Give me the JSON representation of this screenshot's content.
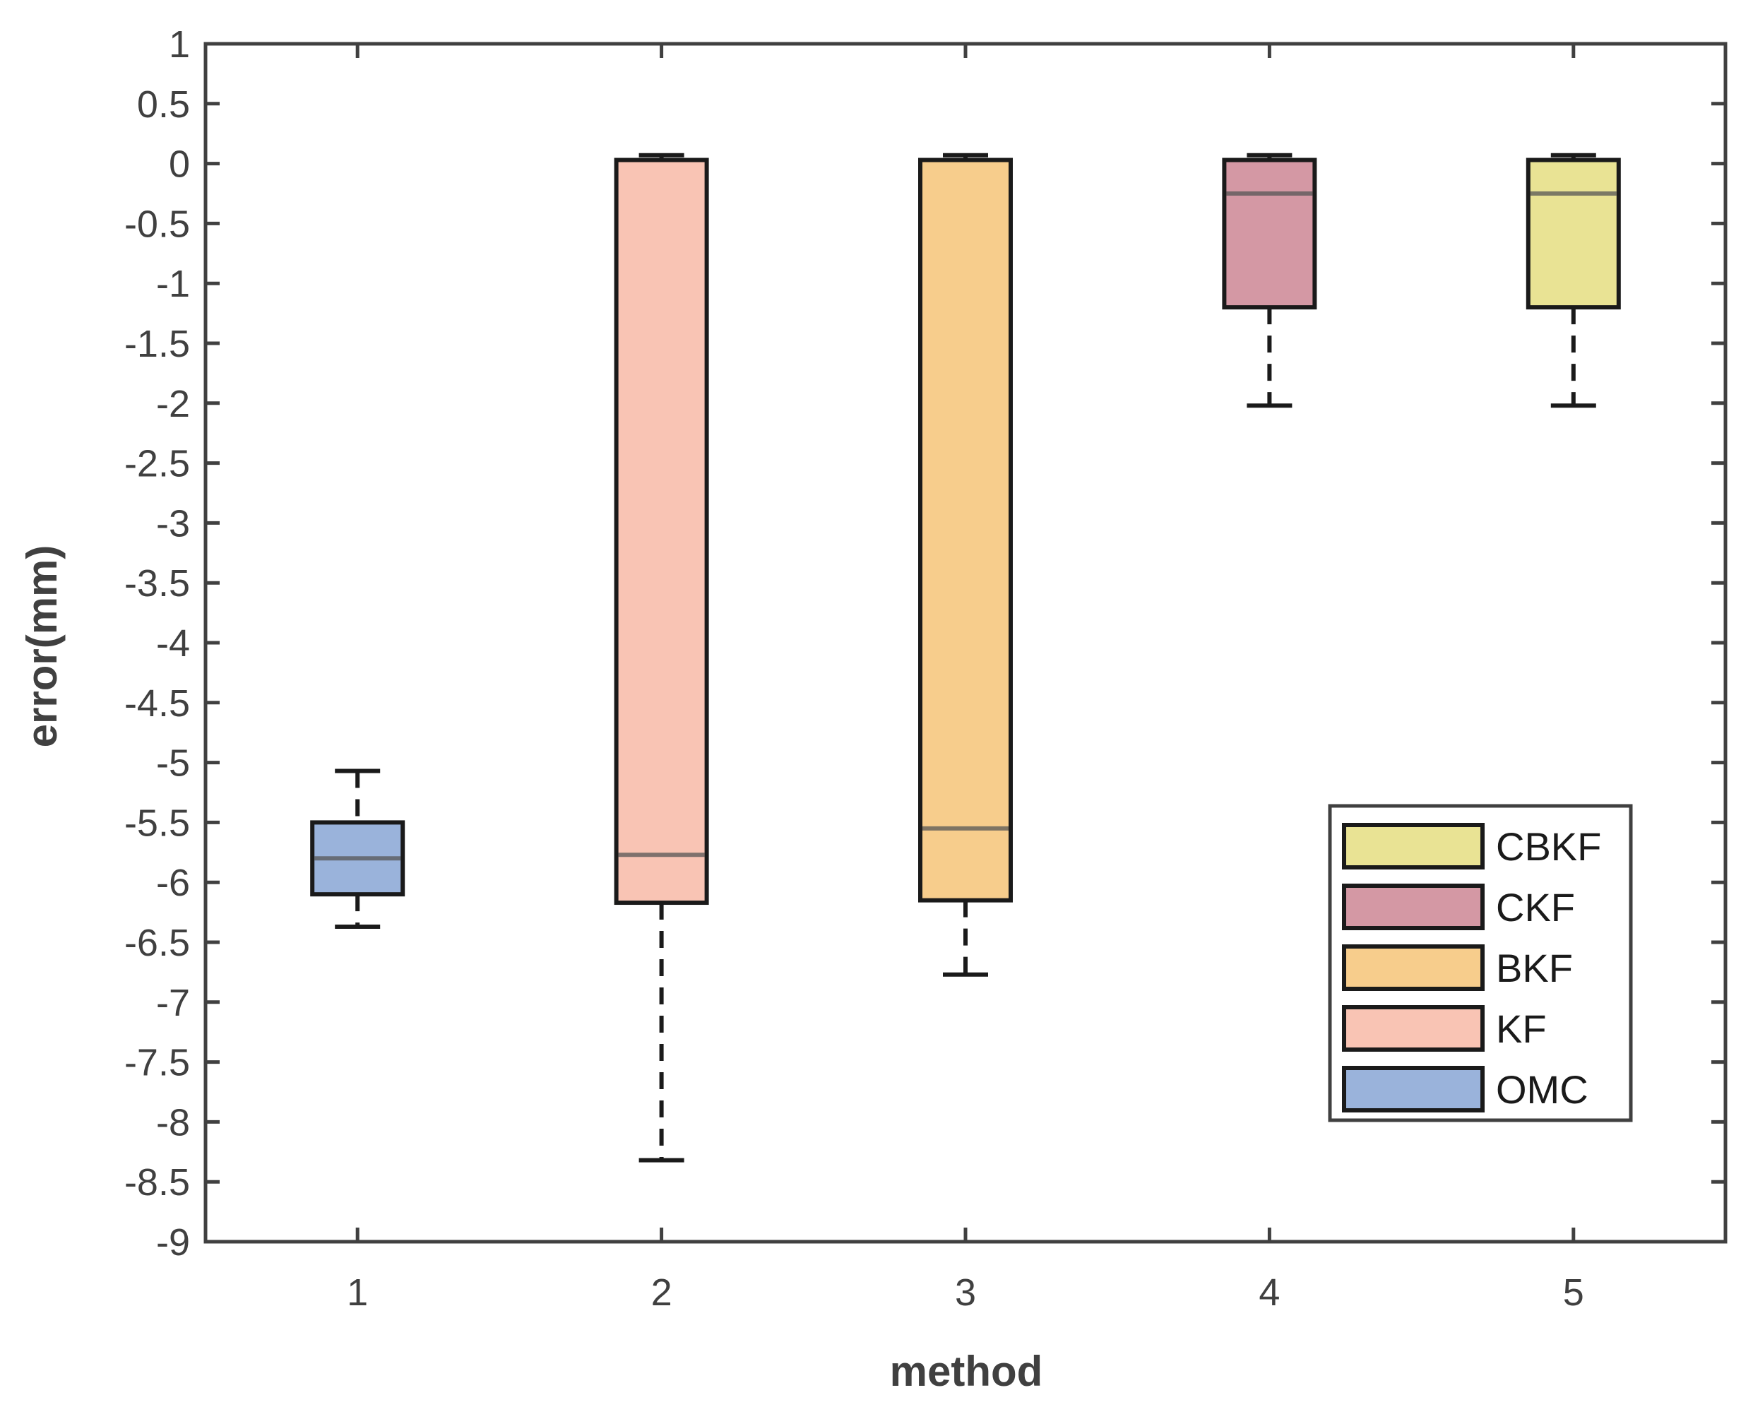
{
  "chart_data": {
    "type": "box",
    "title": "",
    "xlabel": "method",
    "ylabel": "error(mm)",
    "ylim": [
      -9,
      1
    ],
    "yticks": [
      1,
      0.5,
      0,
      -0.5,
      -1,
      -1.5,
      -2,
      -2.5,
      -3,
      -3.5,
      -4,
      -4.5,
      -5,
      -5.5,
      -6,
      -6.5,
      -7,
      -7.5,
      -8,
      -8.5,
      -9
    ],
    "ytick_labels": [
      "1",
      "0.5",
      "0",
      "-0.5",
      "-1",
      "-1.5",
      "-2",
      "-2.5",
      "-3",
      "-3.5",
      "-4",
      "-4.5",
      "-5",
      "-5.5",
      "-6",
      "-6.5",
      "-7",
      "-7.5",
      "-8",
      "-8.5",
      "-9"
    ],
    "categories": [
      "1",
      "2",
      "3",
      "4",
      "5"
    ],
    "boxes": [
      {
        "category": "1",
        "name": "OMC",
        "color": "#9ab3db",
        "lower_whisker": -6.37,
        "q1": -6.1,
        "median": -5.8,
        "q3": -5.5,
        "upper_whisker": -5.07
      },
      {
        "category": "2",
        "name": "KF",
        "color": "#f9c4b4",
        "lower_whisker": -8.32,
        "q1": -6.17,
        "median": -5.77,
        "q3": 0.03,
        "upper_whisker": 0.07
      },
      {
        "category": "3",
        "name": "BKF",
        "color": "#f7cd8c",
        "lower_whisker": -6.77,
        "q1": -6.15,
        "median": -5.55,
        "q3": 0.03,
        "upper_whisker": 0.07
      },
      {
        "category": "4",
        "name": "CKF",
        "color": "#d498a4",
        "lower_whisker": -2.02,
        "q1": -1.2,
        "median": -0.25,
        "q3": 0.03,
        "upper_whisker": 0.07
      },
      {
        "category": "5",
        "name": "CBKF",
        "color": "#e9e394",
        "lower_whisker": -2.02,
        "q1": -1.2,
        "median": -0.25,
        "q3": 0.03,
        "upper_whisker": 0.07
      }
    ],
    "legend": {
      "position": "bottom-right",
      "entries": [
        {
          "label": "CBKF",
          "color": "#e9e394"
        },
        {
          "label": "CKF",
          "color": "#d498a4"
        },
        {
          "label": "BKF",
          "color": "#f7cd8c"
        },
        {
          "label": "KF",
          "color": "#f9c4b4"
        },
        {
          "label": "OMC",
          "color": "#9ab3db"
        }
      ]
    },
    "grid": false
  }
}
